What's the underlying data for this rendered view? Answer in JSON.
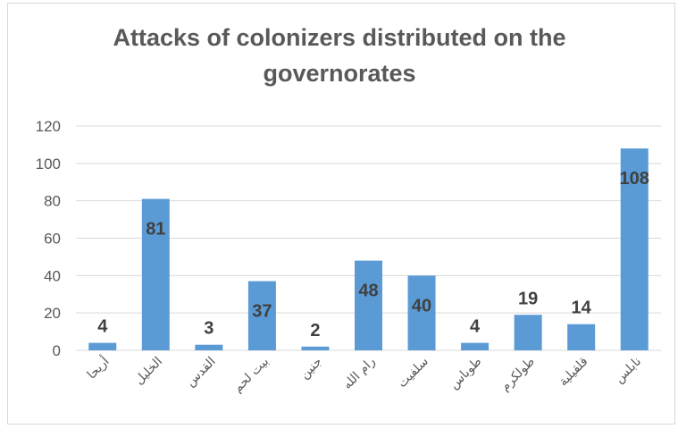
{
  "chart_data": {
    "type": "bar",
    "title": "Attacks of colonizers distributed on the governorates",
    "categories": [
      "أريحا",
      "الخليل",
      "القدس",
      "بيت لحم",
      "جنين",
      "رام الله",
      "سلفيت",
      "طوباس",
      "طولكرم",
      "قلقيلية",
      "نابلس"
    ],
    "values": [
      4,
      81,
      3,
      37,
      2,
      48,
      40,
      4,
      19,
      14,
      108
    ],
    "data_labels": [
      "4",
      "81",
      "3",
      "37",
      "2",
      "48",
      "40",
      "4",
      "19",
      "14",
      "108"
    ],
    "y_ticks": [
      "0",
      "20",
      "40",
      "60",
      "80",
      "100",
      "120"
    ],
    "ylim": [
      0,
      120
    ],
    "xlabel": "",
    "ylabel": "",
    "grid": true,
    "legend": "none",
    "bar_color": "#5b9bd5"
  }
}
